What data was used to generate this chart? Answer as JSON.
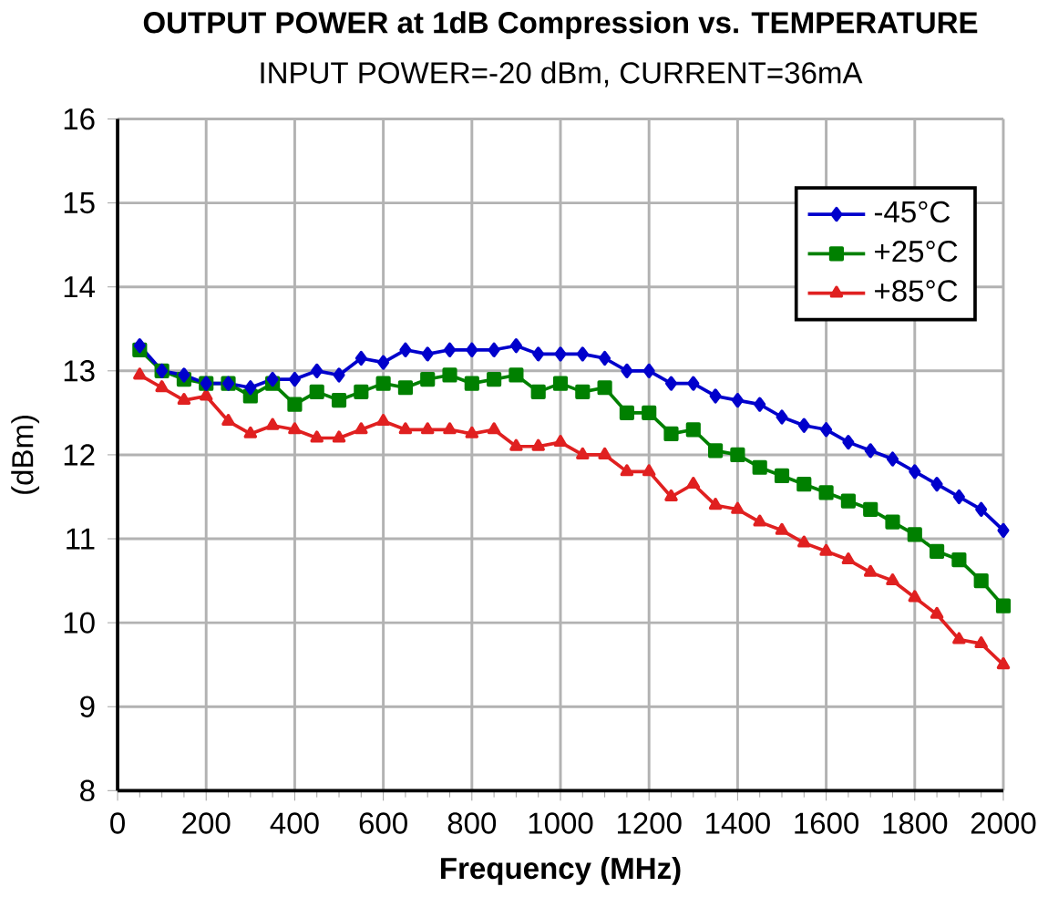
{
  "chart_data": {
    "type": "line",
    "title": "OUTPUT POWER at 1dB Compression vs. TEMPERATURE",
    "subtitle": "INPUT POWER=-20 dBm, CURRENT=36mA",
    "xlabel": "Frequency (MHz)",
    "ylabel": "(dBm)",
    "x": [
      50,
      100,
      150,
      200,
      250,
      300,
      350,
      400,
      450,
      500,
      550,
      600,
      650,
      700,
      750,
      800,
      850,
      900,
      950,
      1000,
      1050,
      1100,
      1150,
      1200,
      1250,
      1300,
      1350,
      1400,
      1450,
      1500,
      1550,
      1600,
      1650,
      1700,
      1750,
      1800,
      1850,
      1900,
      1950,
      2000
    ],
    "series": [
      {
        "name": "-45°C",
        "color": "#0000cc",
        "marker": "diamond",
        "values": [
          13.3,
          13.0,
          12.95,
          12.85,
          12.85,
          12.8,
          12.9,
          12.9,
          13.0,
          12.95,
          13.15,
          13.1,
          13.25,
          13.2,
          13.25,
          13.25,
          13.25,
          13.3,
          13.2,
          13.2,
          13.2,
          13.15,
          13.0,
          13.0,
          12.85,
          12.85,
          12.7,
          12.65,
          12.6,
          12.45,
          12.35,
          12.3,
          12.15,
          12.05,
          11.95,
          11.8,
          11.65,
          11.5,
          11.35,
          11.1
        ]
      },
      {
        "name": "+25°C",
        "color": "#008000",
        "marker": "square",
        "values": [
          13.25,
          13.0,
          12.9,
          12.85,
          12.85,
          12.7,
          12.85,
          12.6,
          12.75,
          12.65,
          12.75,
          12.85,
          12.8,
          12.9,
          12.95,
          12.85,
          12.9,
          12.95,
          12.75,
          12.85,
          12.75,
          12.8,
          12.5,
          12.5,
          12.25,
          12.3,
          12.05,
          12.0,
          11.85,
          11.75,
          11.65,
          11.55,
          11.45,
          11.35,
          11.2,
          11.05,
          10.85,
          10.75,
          10.5,
          10.2
        ]
      },
      {
        "name": "+85°C",
        "color": "#e02020",
        "marker": "triangle",
        "values": [
          12.95,
          12.8,
          12.65,
          12.7,
          12.4,
          12.25,
          12.35,
          12.3,
          12.2,
          12.2,
          12.3,
          12.4,
          12.3,
          12.3,
          12.3,
          12.25,
          12.3,
          12.1,
          12.1,
          12.15,
          12.0,
          12.0,
          11.8,
          11.8,
          11.5,
          11.65,
          11.4,
          11.35,
          11.2,
          11.1,
          10.95,
          10.85,
          10.75,
          10.6,
          10.5,
          10.3,
          10.1,
          9.8,
          9.75,
          9.5
        ]
      }
    ],
    "xlim": [
      0,
      2000
    ],
    "ylim": [
      8,
      16
    ],
    "xticks": [
      0,
      200,
      400,
      600,
      800,
      1000,
      1200,
      1400,
      1600,
      1800,
      2000
    ],
    "yticks": [
      8,
      9,
      10,
      11,
      12,
      13,
      14,
      15,
      16
    ],
    "grid": true,
    "legend": "top right",
    "line_style": "solid"
  }
}
